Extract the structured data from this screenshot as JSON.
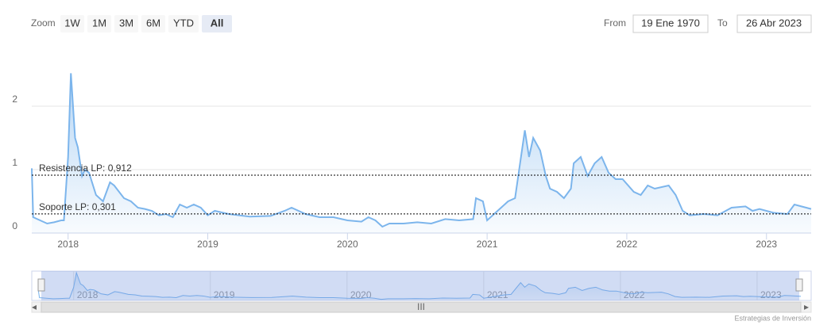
{
  "chart_data": {
    "type": "area",
    "range_selector": {
      "label": "Zoom",
      "buttons": [
        "1W",
        "1M",
        "3M",
        "6M",
        "YTD",
        "All"
      ],
      "selected": 5,
      "from_label": "From",
      "from": "19 Ene 1970",
      "to_label": "To",
      "to": "26 Abr 2023"
    },
    "x": [
      2017.74,
      2017.75,
      2017.8,
      2017.85,
      2017.9,
      2017.95,
      2017.97,
      2018.0,
      2018.02,
      2018.05,
      2018.07,
      2018.1,
      2018.12,
      2018.15,
      2018.2,
      2018.25,
      2018.3,
      2018.33,
      2018.4,
      2018.45,
      2018.5,
      2018.55,
      2018.6,
      2018.65,
      2018.7,
      2018.75,
      2018.8,
      2018.85,
      2018.9,
      2018.95,
      2019.0,
      2019.05,
      2019.15,
      2019.3,
      2019.45,
      2019.55,
      2019.6,
      2019.7,
      2019.8,
      2019.9,
      2020.0,
      2020.1,
      2020.15,
      2020.2,
      2020.25,
      2020.3,
      2020.4,
      2020.5,
      2020.6,
      2020.7,
      2020.8,
      2020.9,
      2020.92,
      2020.97,
      2021.0,
      2021.05,
      2021.1,
      2021.15,
      2021.2,
      2021.27,
      2021.3,
      2021.33,
      2021.38,
      2021.42,
      2021.45,
      2021.5,
      2021.55,
      2021.6,
      2021.62,
      2021.67,
      2021.72,
      2021.77,
      2021.82,
      2021.87,
      2021.92,
      2021.97,
      2022.05,
      2022.1,
      2022.15,
      2022.2,
      2022.3,
      2022.35,
      2022.4,
      2022.45,
      2022.55,
      2022.65,
      2022.75,
      2022.85,
      2022.9,
      2022.95,
      2023.05,
      2023.15,
      2023.2,
      2023.25,
      2023.32
    ],
    "values": [
      1.02,
      0.25,
      0.2,
      0.15,
      0.17,
      0.2,
      0.2,
      1.2,
      2.52,
      1.5,
      1.35,
      0.9,
      1.0,
      0.95,
      0.6,
      0.5,
      0.8,
      0.75,
      0.55,
      0.5,
      0.4,
      0.38,
      0.35,
      0.28,
      0.3,
      0.25,
      0.45,
      0.4,
      0.45,
      0.4,
      0.28,
      0.35,
      0.3,
      0.26,
      0.27,
      0.35,
      0.4,
      0.3,
      0.25,
      0.25,
      0.2,
      0.18,
      0.25,
      0.2,
      0.1,
      0.15,
      0.15,
      0.17,
      0.15,
      0.22,
      0.2,
      0.22,
      0.55,
      0.5,
      0.2,
      0.3,
      0.4,
      0.5,
      0.55,
      1.62,
      1.2,
      1.5,
      1.3,
      0.9,
      0.7,
      0.65,
      0.55,
      0.7,
      1.1,
      1.2,
      0.9,
      1.1,
      1.2,
      0.95,
      0.85,
      0.85,
      0.65,
      0.6,
      0.75,
      0.7,
      0.75,
      0.6,
      0.35,
      0.28,
      0.3,
      0.28,
      0.4,
      0.42,
      0.35,
      0.38,
      0.32,
      0.3,
      0.45,
      0.42,
      0.38
    ],
    "color": "#7cb5ec",
    "xlim": [
      2017.74,
      2023.32
    ],
    "xticks": [
      2018,
      2019,
      2020,
      2021,
      2022,
      2023
    ],
    "ylim": [
      0,
      3
    ],
    "yticks": [
      0,
      1,
      2
    ],
    "grid": true,
    "plot_lines": [
      {
        "label": "Resistencia LP: 0,912",
        "value": 0.912
      },
      {
        "label": "Soporte LP: 0,301",
        "value": 0.301
      }
    ],
    "credit": "Estrategias de Inversión"
  }
}
